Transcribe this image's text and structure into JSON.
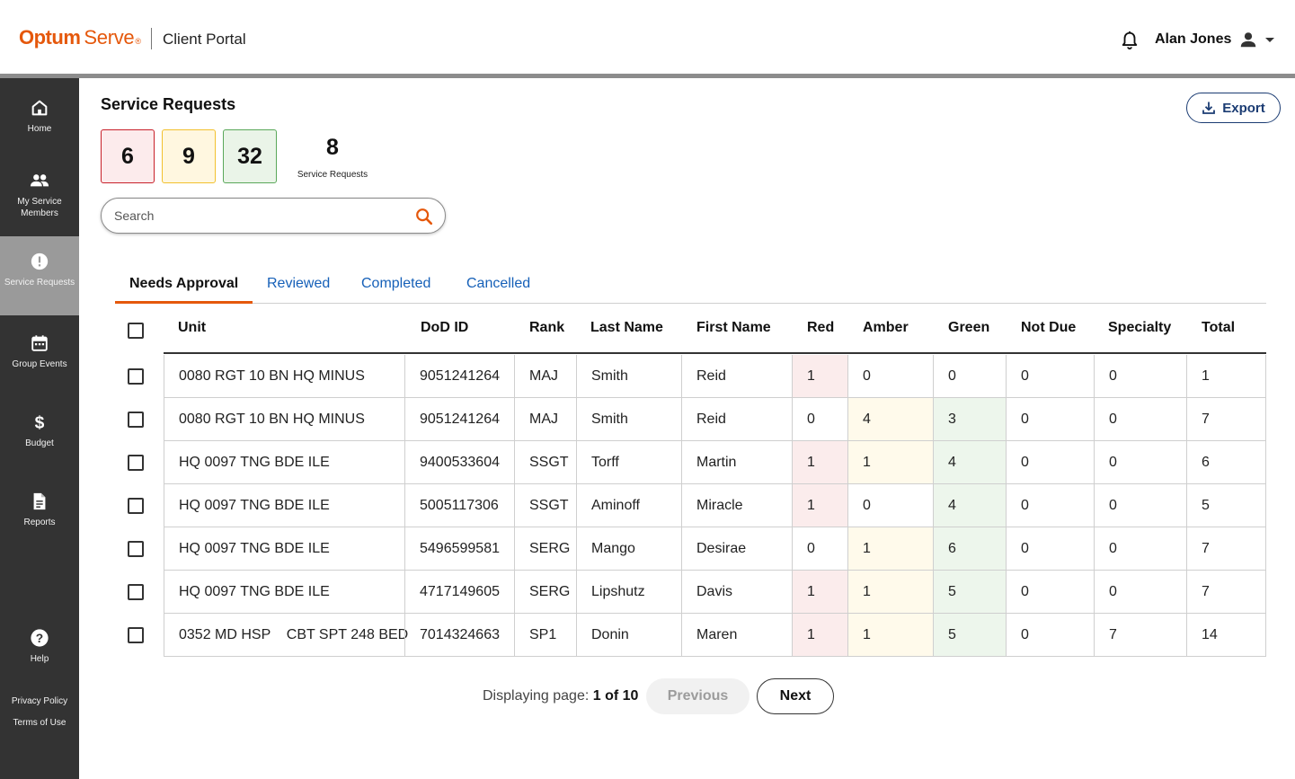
{
  "header": {
    "logo_optum": "Optum",
    "logo_serve": "Serve",
    "logo_reg": "®",
    "portal_title": "Client Portal",
    "user_name": "Alan Jones",
    "brand_color": "#e5580c"
  },
  "sidebar": {
    "items": [
      {
        "label": "Home",
        "icon": "home-icon"
      },
      {
        "label": "My Service Members",
        "icon": "people-icon"
      },
      {
        "label": "Service Requests",
        "icon": "alert-icon",
        "active": true
      },
      {
        "label": "Group Events",
        "icon": "calendar-icon"
      },
      {
        "label": "Budget",
        "icon": "dollar-icon"
      },
      {
        "label": "Reports",
        "icon": "document-icon"
      },
      {
        "label": "Help",
        "icon": "help-icon"
      }
    ],
    "privacy_policy": "Privacy Policy",
    "terms_of_use": "Terms of Use"
  },
  "main": {
    "title": "Service Requests",
    "export_label": "Export",
    "counts": {
      "red": "6",
      "amber": "9",
      "green": "32"
    },
    "total": {
      "value": "8",
      "label": "Service Requests"
    },
    "search": {
      "placeholder": "Search"
    },
    "tabs": [
      {
        "label": "Needs Approval",
        "active": true
      },
      {
        "label": "Reviewed"
      },
      {
        "label": "Completed"
      },
      {
        "label": "Cancelled"
      }
    ]
  },
  "table": {
    "columns": [
      "Unit",
      "DoD ID",
      "Rank",
      "Last Name",
      "First Name",
      "Red",
      "Amber",
      "Green",
      "Not Due",
      "Specialty",
      "Total"
    ],
    "rows": [
      [
        "0080 RGT 10 BN HQ MINUS",
        "9051241264",
        "MAJ",
        "Smith",
        "Reid",
        "1",
        "0",
        "0",
        "0",
        "0",
        "1"
      ],
      [
        "0080 RGT 10 BN HQ MINUS",
        "9051241264",
        "MAJ",
        "Smith",
        "Reid",
        "0",
        "4",
        "3",
        "0",
        "0",
        "7"
      ],
      [
        "HQ 0097 TNG BDE ILE",
        "9400533604",
        "SSGT",
        "Torff",
        "Martin",
        "1",
        "1",
        "4",
        "0",
        "0",
        "6"
      ],
      [
        "HQ 0097 TNG BDE ILE",
        "5005117306",
        "SSGT",
        "Aminoff",
        "Miracle",
        "1",
        "0",
        "4",
        "0",
        "0",
        "5"
      ],
      [
        "HQ 0097 TNG BDE ILE",
        "5496599581",
        "SERG",
        "Mango",
        "Desirae",
        "0",
        "1",
        "6",
        "0",
        "0",
        "7"
      ],
      [
        "HQ 0097 TNG BDE ILE",
        "4717149605",
        "SERG",
        "Lipshutz",
        "Davis",
        "1",
        "1",
        "5",
        "0",
        "0",
        "7"
      ],
      [
        "0352 MD HSP    CBT SPT 248 BED",
        "7014324663",
        "SP1",
        "Donin",
        "Maren",
        "1",
        "1",
        "5",
        "0",
        "7",
        "14"
      ]
    ]
  },
  "pagination": {
    "prefix": "Displaying page:",
    "page": "1 of 10",
    "previous": "Previous",
    "next": "Next"
  }
}
